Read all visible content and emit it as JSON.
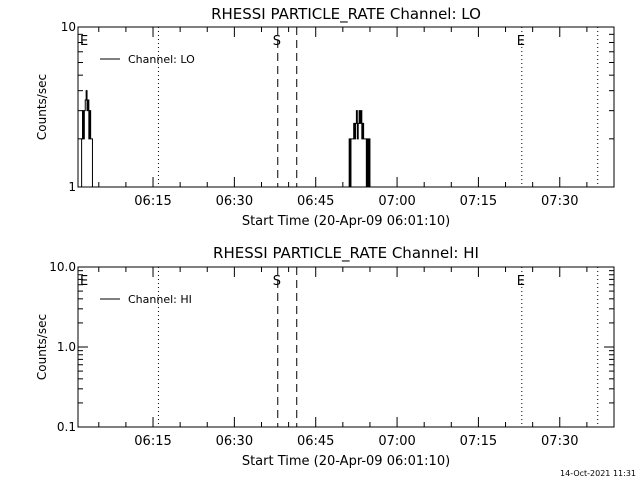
{
  "footer": {
    "timestamp": "14-Oct-2021 11:31"
  },
  "chart_data": [
    {
      "type": "line",
      "title": "RHESSI PARTICLE_RATE Channel: LO",
      "xlabel": "Start Time (20-Apr-09 06:01:10)",
      "ylabel": "Counts/sec",
      "y_scale": "log",
      "ylim": [
        1,
        10
      ],
      "xlim": [
        "06:01:10",
        "07:40:00"
      ],
      "x_ticks": [
        "06:15",
        "06:30",
        "06:45",
        "07:00",
        "07:15",
        "07:30"
      ],
      "y_tick_labels": [
        {
          "value": 10,
          "label": "10"
        },
        {
          "value": 1,
          "label": "1"
        }
      ],
      "legend": {
        "position": "top-left",
        "entries": [
          "Channel: LO"
        ]
      },
      "markers": [
        {
          "label": "E",
          "time": "06:01:10",
          "style": "none"
        },
        {
          "label": "",
          "time": "06:16:00",
          "style": "dotted"
        },
        {
          "label": "S",
          "time": "06:38:00",
          "style": "dashed"
        },
        {
          "label": "",
          "time": "06:41:30",
          "style": "dashed"
        },
        {
          "label": "E",
          "time": "07:23:00",
          "style": "dotted"
        },
        {
          "label": "",
          "time": "07:37:00",
          "style": "dotted"
        }
      ],
      "series": [
        {
          "name": "Channel: LO",
          "points": [
            [
              "06:01:40",
              1
            ],
            [
              "06:01:50",
              2
            ],
            [
              "06:02:00",
              3
            ],
            [
              "06:02:10",
              2
            ],
            [
              "06:02:20",
              3
            ],
            [
              "06:02:30",
              3.5
            ],
            [
              "06:02:40",
              4
            ],
            [
              "06:02:50",
              3
            ],
            [
              "06:03:00",
              3.5
            ],
            [
              "06:03:10",
              2
            ],
            [
              "06:03:20",
              3
            ],
            [
              "06:03:30",
              2
            ],
            [
              "06:03:40",
              2
            ],
            [
              "06:03:50",
              1
            ],
            [
              "06:51:00",
              1
            ],
            [
              "06:51:10",
              2
            ],
            [
              "06:51:20",
              1
            ],
            [
              "06:51:30",
              2
            ],
            [
              "06:51:40",
              2
            ],
            [
              "06:51:50",
              2
            ],
            [
              "06:52:00",
              2.5
            ],
            [
              "06:52:10",
              2
            ],
            [
              "06:52:20",
              2.5
            ],
            [
              "06:52:30",
              3
            ],
            [
              "06:52:40",
              2
            ],
            [
              "06:52:50",
              2.5
            ],
            [
              "06:53:00",
              3
            ],
            [
              "06:53:10",
              2.5
            ],
            [
              "06:53:20",
              3
            ],
            [
              "06:53:30",
              2
            ],
            [
              "06:53:40",
              2.5
            ],
            [
              "06:53:50",
              2
            ],
            [
              "06:54:00",
              2
            ],
            [
              "06:54:10",
              2
            ],
            [
              "06:54:20",
              1
            ],
            [
              "06:54:30",
              2
            ],
            [
              "06:54:40",
              1
            ],
            [
              "06:54:50",
              2
            ],
            [
              "06:55:00",
              1
            ]
          ]
        }
      ]
    },
    {
      "type": "line",
      "title": "RHESSI PARTICLE_RATE Channel: HI",
      "xlabel": "Start Time (20-Apr-09 06:01:10)",
      "ylabel": "Counts/sec",
      "y_scale": "log",
      "ylim": [
        0.1,
        10
      ],
      "xlim": [
        "06:01:10",
        "07:40:00"
      ],
      "x_ticks": [
        "06:15",
        "06:30",
        "06:45",
        "07:00",
        "07:15",
        "07:30"
      ],
      "y_tick_labels": [
        {
          "value": 10,
          "label": "10.0"
        },
        {
          "value": 1,
          "label": "1.0"
        },
        {
          "value": 0.1,
          "label": "0.1"
        }
      ],
      "legend": {
        "position": "top-left",
        "entries": [
          "Channel: HI"
        ]
      },
      "markers": [
        {
          "label": "E",
          "time": "06:01:10",
          "style": "none"
        },
        {
          "label": "",
          "time": "06:16:00",
          "style": "dotted"
        },
        {
          "label": "S",
          "time": "06:38:00",
          "style": "dashed"
        },
        {
          "label": "",
          "time": "06:41:30",
          "style": "dashed"
        },
        {
          "label": "E",
          "time": "07:23:00",
          "style": "dotted"
        },
        {
          "label": "",
          "time": "07:37:00",
          "style": "dotted"
        }
      ],
      "series": [
        {
          "name": "Channel: HI",
          "points": []
        }
      ]
    }
  ]
}
